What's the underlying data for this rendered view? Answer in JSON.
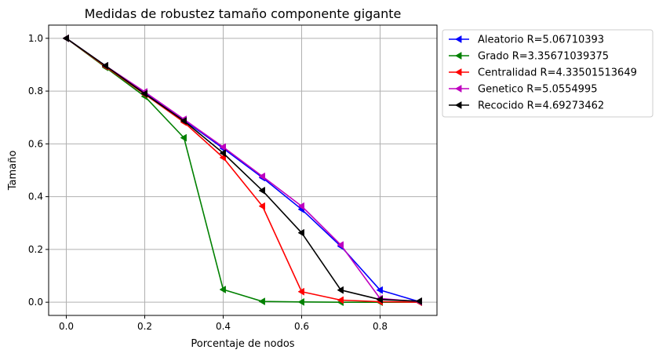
{
  "chart_data": {
    "type": "line",
    "title": "Medidas de robustez tamaño componente gigante",
    "xlabel": "Porcentaje de nodos",
    "ylabel": "Tamaño",
    "xlim": [
      -0.045,
      0.945
    ],
    "ylim": [
      -0.05,
      1.05
    ],
    "xticks": [
      "0.0",
      "0.2",
      "0.4",
      "0.6",
      "0.8"
    ],
    "yticks": [
      "0.0",
      "0.2",
      "0.4",
      "0.6",
      "0.8",
      "1.0"
    ],
    "grid": true,
    "legend_position": "outside-right-top",
    "marker": "triangle-left",
    "x": [
      0.0,
      0.1,
      0.2,
      0.3,
      0.4,
      0.5,
      0.6,
      0.7,
      0.8,
      0.9
    ],
    "series": [
      {
        "name": "Aleatorio R=5.06710393",
        "color": "#0000ff",
        "values": [
          1.0,
          0.895,
          0.793,
          0.69,
          0.583,
          0.472,
          0.352,
          0.212,
          0.046,
          0.002
        ]
      },
      {
        "name": "Grado R=3.35671039375",
        "color": "#008000",
        "values": [
          1.0,
          0.89,
          0.78,
          0.623,
          0.048,
          0.003,
          0.001,
          0.0,
          0.0,
          0.0
        ]
      },
      {
        "name": "Centralidad R=4.33501513649",
        "color": "#ff0000",
        "values": [
          1.0,
          0.893,
          0.788,
          0.682,
          0.548,
          0.364,
          0.04,
          0.008,
          0.002,
          0.0
        ]
      },
      {
        "name": "Genetico R=5.0554995",
        "color": "#bf00bf",
        "values": [
          1.0,
          0.896,
          0.797,
          0.693,
          0.588,
          0.477,
          0.364,
          0.217,
          0.014,
          0.002
        ]
      },
      {
        "name": "Recocido R=4.69273462",
        "color": "#000000",
        "values": [
          1.0,
          0.896,
          0.79,
          0.687,
          0.565,
          0.423,
          0.263,
          0.046,
          0.01,
          0.004
        ]
      }
    ]
  }
}
